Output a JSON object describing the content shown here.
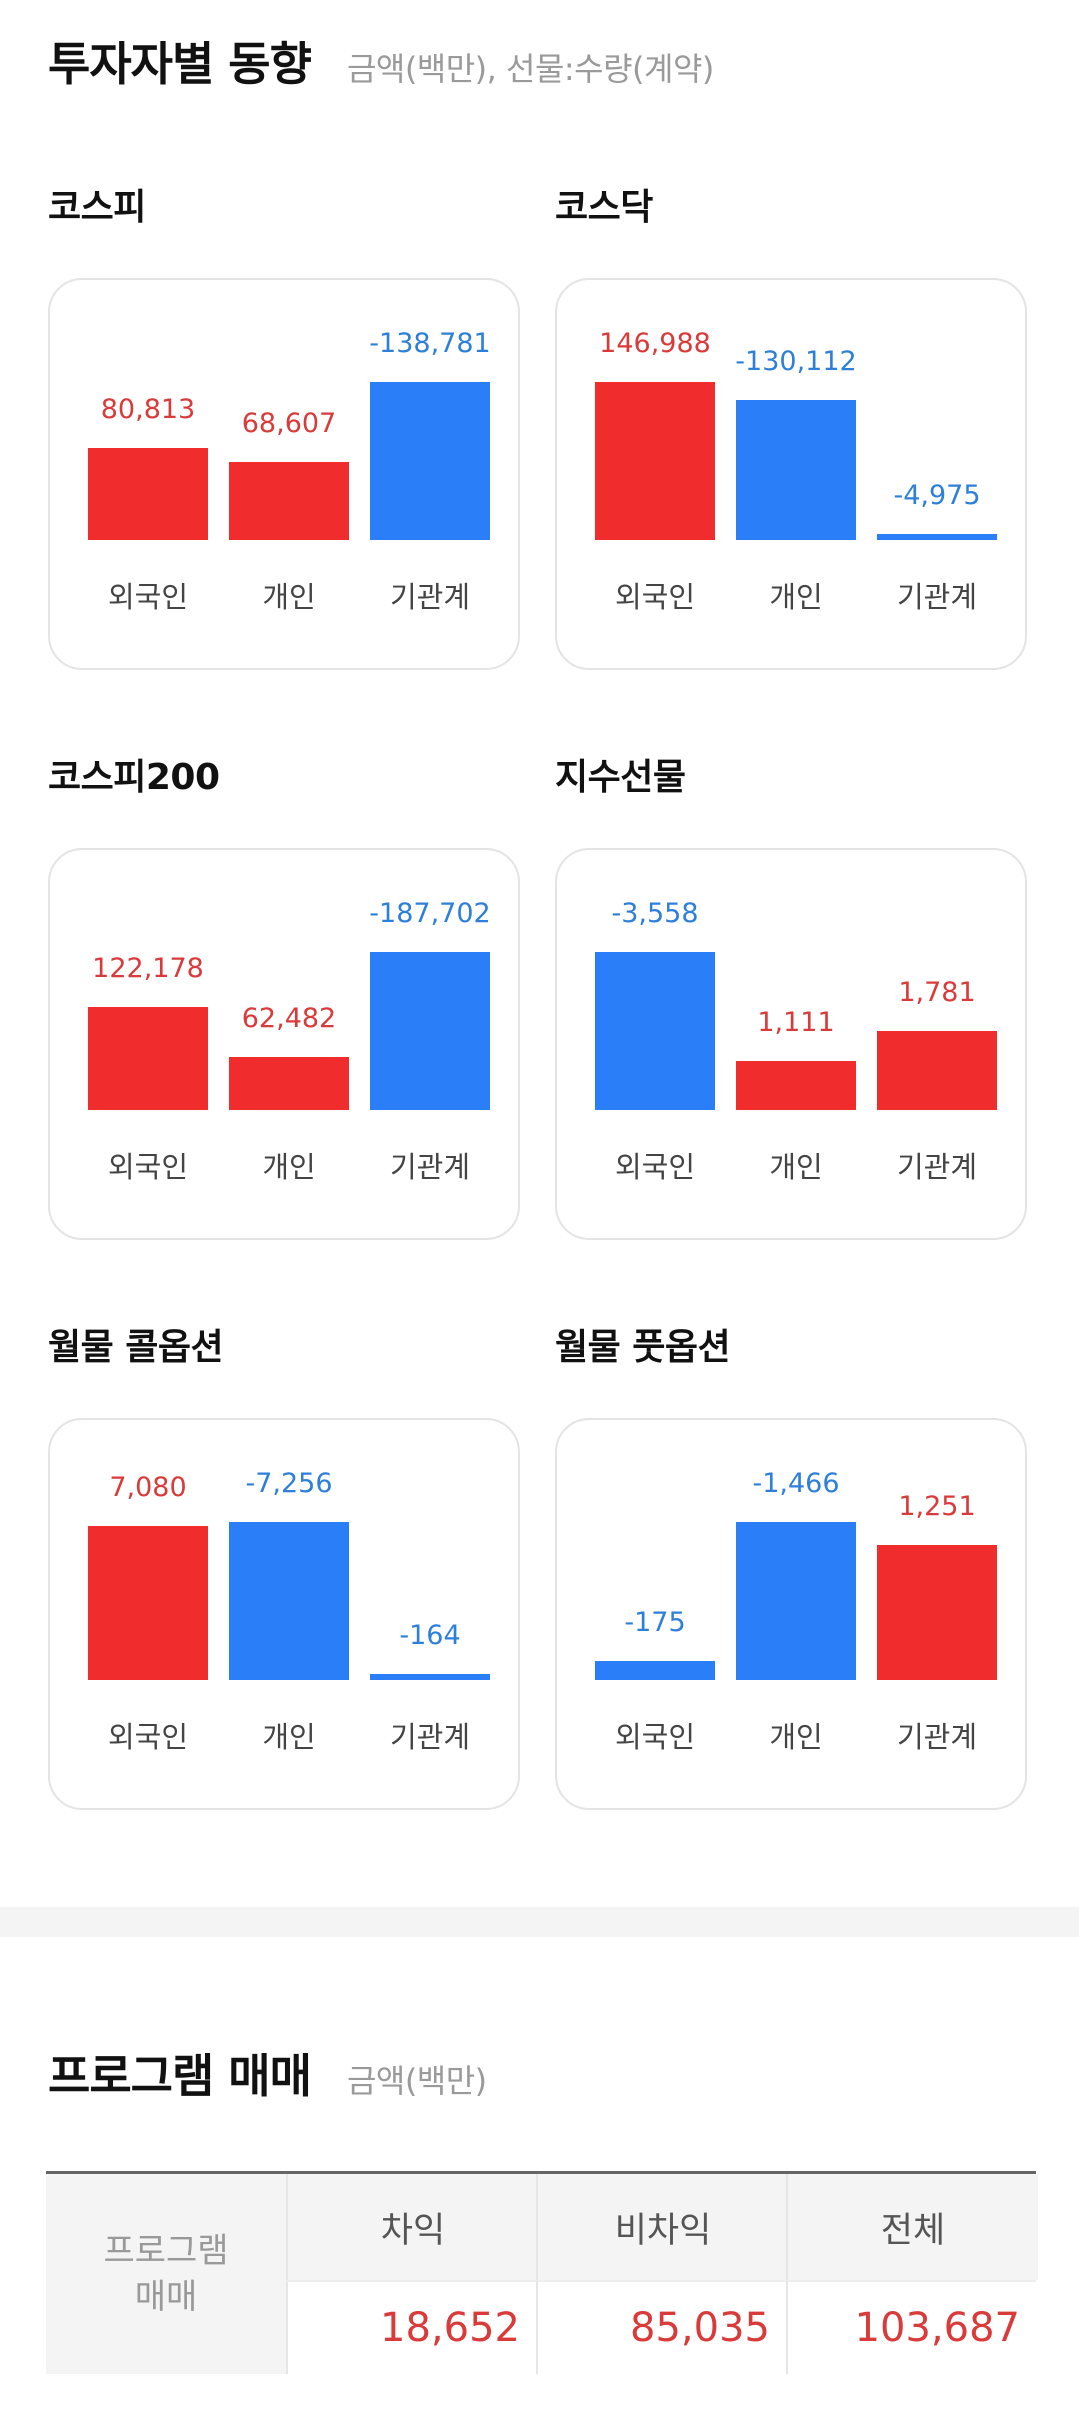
{
  "investor_section": {
    "title": "투자자별 동향",
    "subtitle": "금액(백만), 선물:수량(계약)"
  },
  "charts": [
    {
      "title": "코스피",
      "labels": [
        "외국인",
        "개인",
        "기관계"
      ],
      "values": [
        "80,813",
        "68,607",
        "-138,781"
      ],
      "signs": [
        "pos",
        "pos",
        "neg"
      ],
      "amounts": [
        80813,
        68607,
        -138781
      ]
    },
    {
      "title": "코스닥",
      "labels": [
        "외국인",
        "개인",
        "기관계"
      ],
      "values": [
        "146,988",
        "-130,112",
        "-4,975"
      ],
      "signs": [
        "pos",
        "neg",
        "neg"
      ],
      "amounts": [
        146988,
        -130112,
        -4975
      ]
    },
    {
      "title": "코스피200",
      "labels": [
        "외국인",
        "개인",
        "기관계"
      ],
      "values": [
        "122,178",
        "62,482",
        "-187,702"
      ],
      "signs": [
        "pos",
        "pos",
        "neg"
      ],
      "amounts": [
        122178,
        62482,
        -187702
      ]
    },
    {
      "title": "지수선물",
      "labels": [
        "외국인",
        "개인",
        "기관계"
      ],
      "values": [
        "-3,558",
        "1,111",
        "1,781"
      ],
      "signs": [
        "neg",
        "pos",
        "pos"
      ],
      "amounts": [
        -3558,
        1111,
        1781
      ]
    },
    {
      "title": "월물 콜옵션",
      "labels": [
        "외국인",
        "개인",
        "기관계"
      ],
      "values": [
        "7,080",
        "-7,256",
        "-164"
      ],
      "signs": [
        "pos",
        "neg",
        "neg"
      ],
      "amounts": [
        7080,
        -7256,
        -164
      ]
    },
    {
      "title": "월물 풋옵션",
      "labels": [
        "외국인",
        "개인",
        "기관계"
      ],
      "values": [
        "-175",
        "-1,466",
        "1,251"
      ],
      "signs": [
        "neg",
        "neg",
        "pos"
      ],
      "amounts": [
        -175,
        -1466,
        1251
      ]
    }
  ],
  "program_section": {
    "title": "프로그램 매매",
    "subtitle": "금액(백만)",
    "row_header": [
      "프로그램",
      "매매"
    ],
    "columns": [
      "차익",
      "비차익",
      "전체"
    ],
    "values": [
      "18,652",
      "85,035",
      "103,687"
    ]
  },
  "colors": {
    "positive": "#f02c2c",
    "negative": "#2a7ff8",
    "positive_text": "#d93a3a",
    "negative_text": "#2d7fd9"
  }
}
